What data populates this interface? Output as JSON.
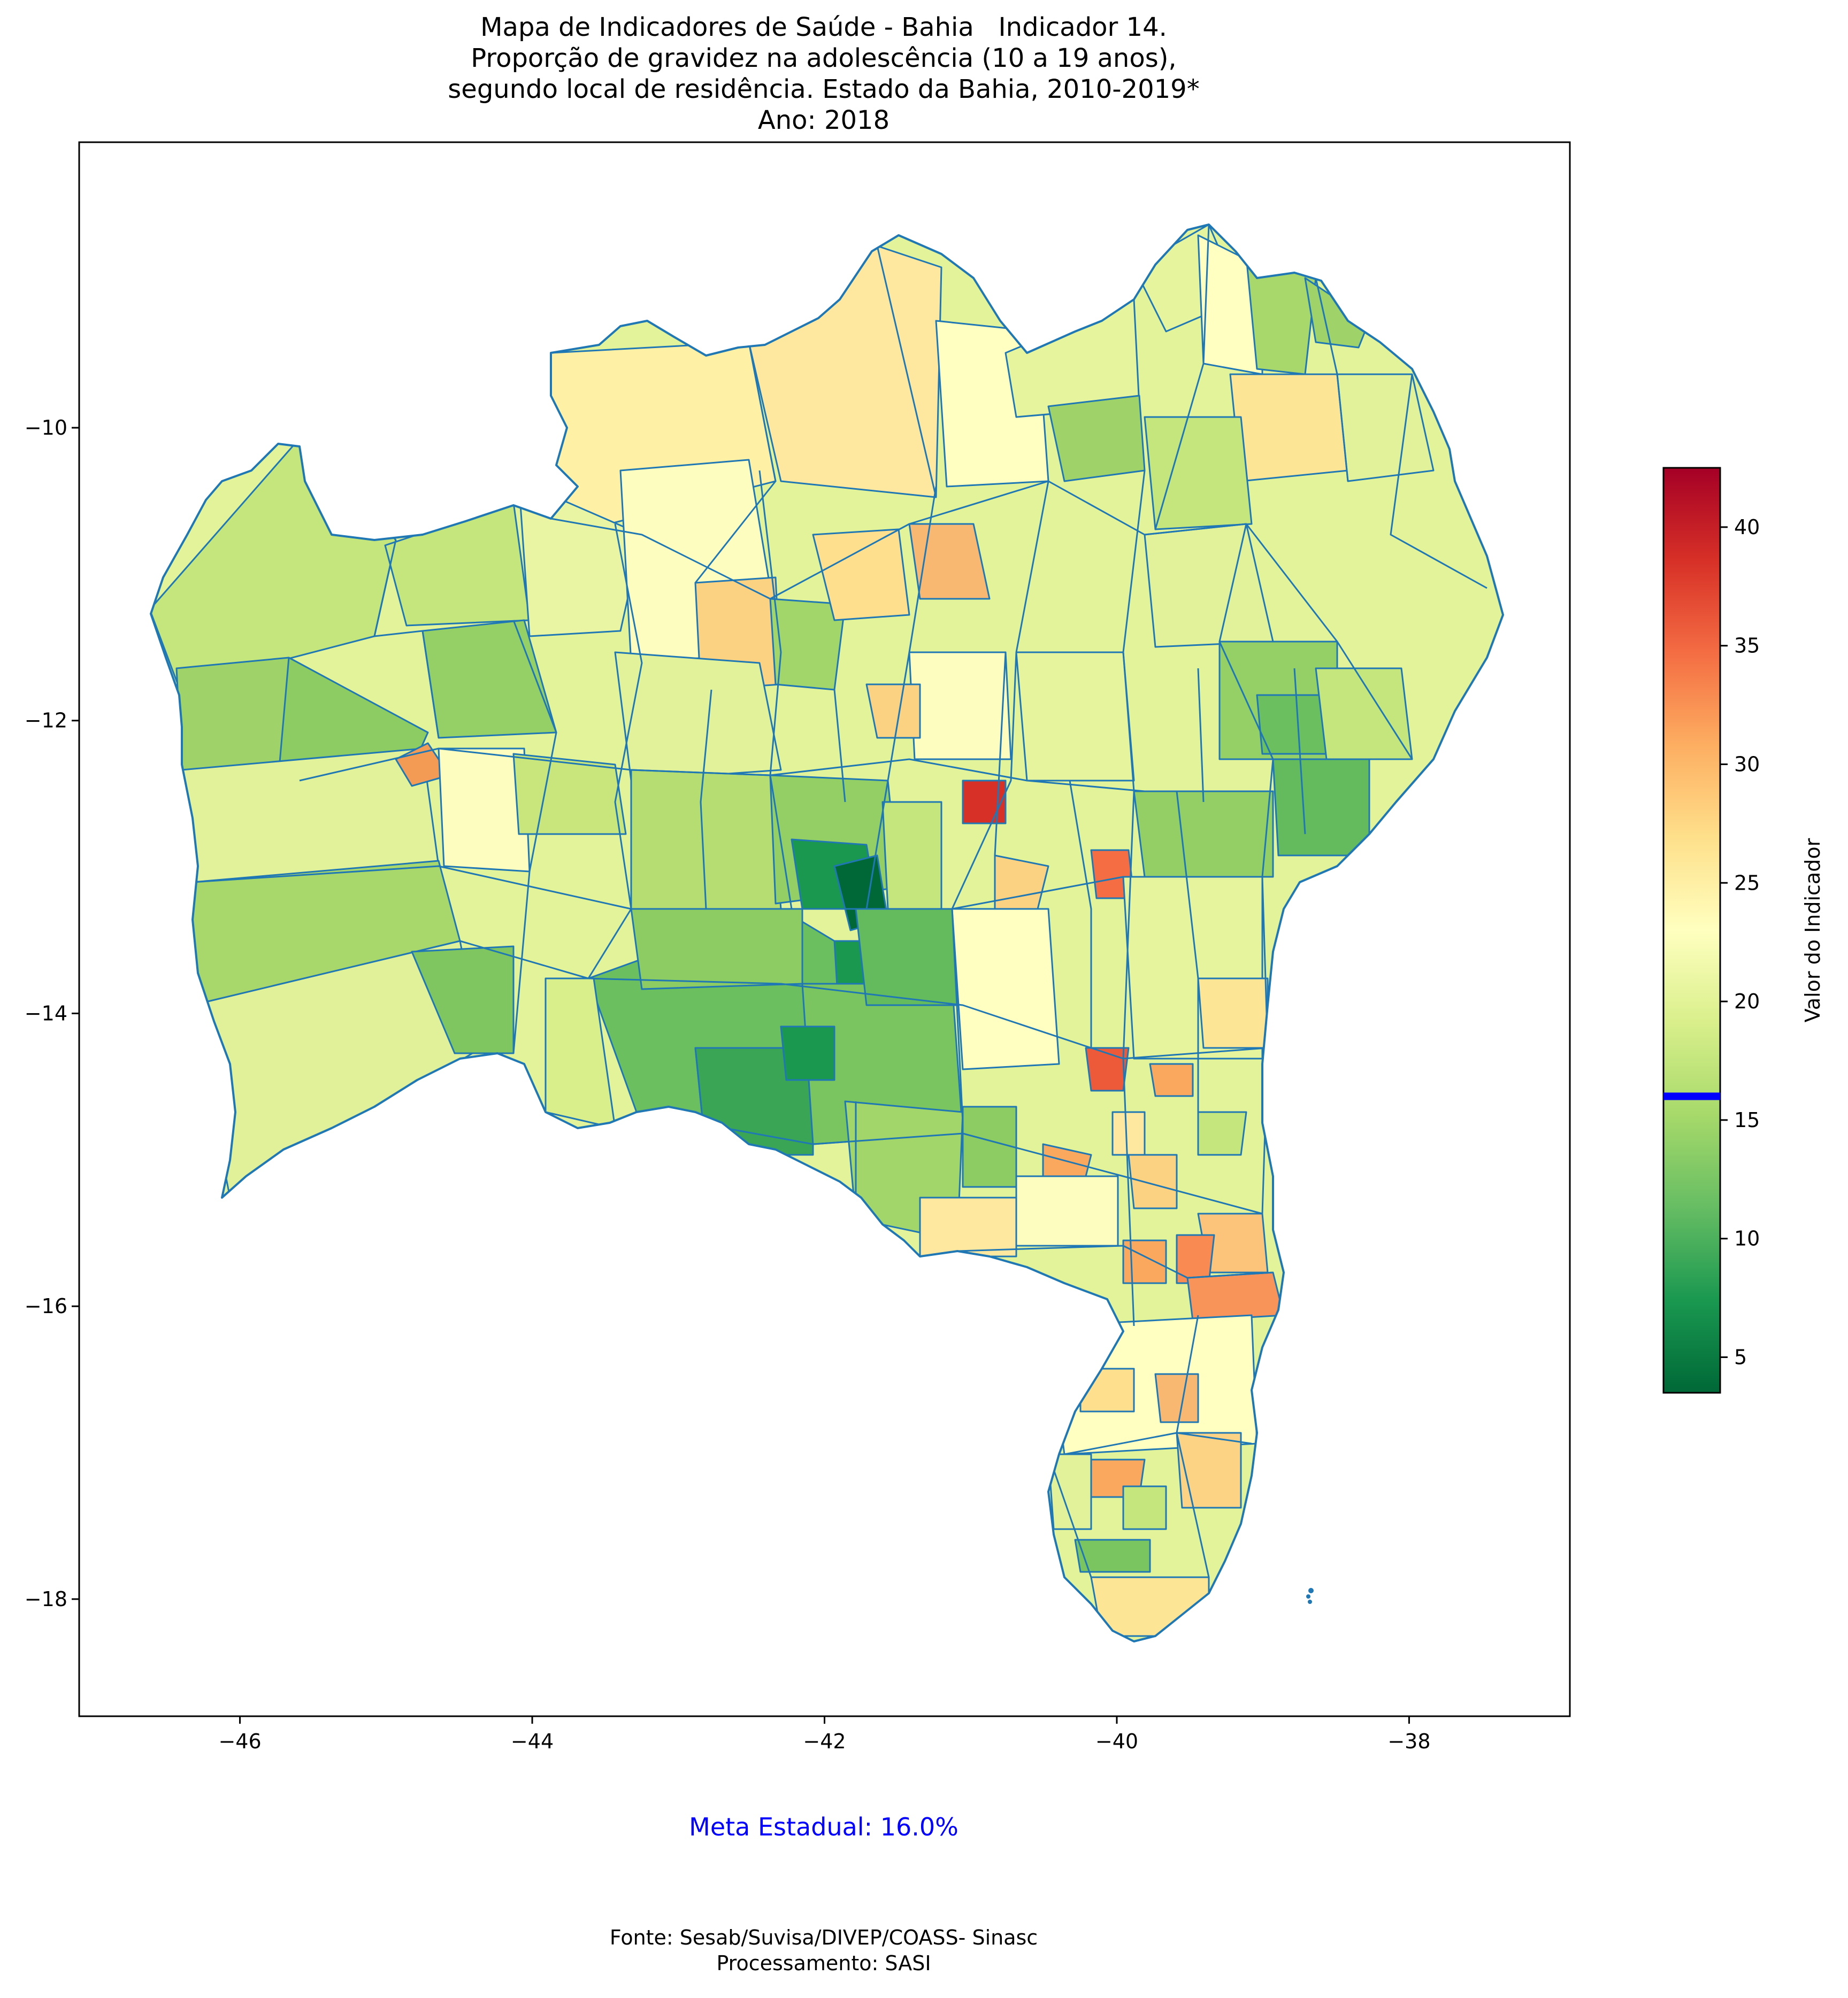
{
  "title": {
    "line1": "Mapa de Indicadores de Saúde - Bahia   Indicador 14.",
    "line2": "Proporção de gravidez na adolescência (10 a 19 anos),",
    "line3": "segundo local de residência. Estado da Bahia, 2010-2019*",
    "line4": "Ano: 2018"
  },
  "axes": {
    "x_ticks": [
      "−46",
      "−44",
      "−42",
      "−40",
      "−38"
    ],
    "y_ticks": [
      "−10",
      "−12",
      "−14",
      "−16",
      "−18"
    ],
    "x_range": [
      -47.1,
      -36.9
    ],
    "y_range": [
      -18.8,
      -8.05
    ]
  },
  "colorbar": {
    "label": "Valor do Indicador",
    "ticks": [
      "5",
      "10",
      "15",
      "20",
      "25",
      "30",
      "35",
      "40"
    ],
    "range": [
      3.5,
      42.5
    ],
    "colormap": "RdYlGn_r",
    "marker_value": 16.0,
    "marker_color": "#0000ff"
  },
  "meta": {
    "text": "Meta Estadual: 16.0%"
  },
  "footer": {
    "source": "Fonte: Sesab/Suvisa/DIVEP/COASS- Sinasc",
    "processing": "Processamento: SASI"
  },
  "map": {
    "border_color": "#1f77b4"
  }
}
